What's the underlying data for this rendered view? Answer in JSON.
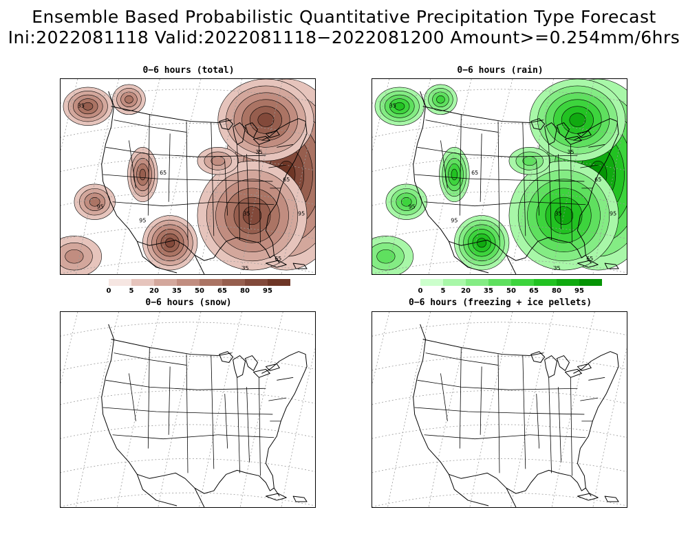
{
  "header": {
    "line1": "Ensemble Based Probabilistic Quantitative Precipitation Type Forecast",
    "line2": "Ini:2022081118 Valid:2022081118−2022081200 Amount>=0.254mm/6hrs"
  },
  "panels": {
    "total": {
      "title": "0−6 hours (total)"
    },
    "rain": {
      "title": "0−6 hours (rain)"
    },
    "snow": {
      "title": "0−6 hours (snow)"
    },
    "ice": {
      "title": "0−6 hours (freezing + ice pellets)"
    }
  },
  "colorbars": {
    "labels": [
      "0",
      "5",
      "20",
      "35",
      "50",
      "65",
      "80",
      "95"
    ],
    "brown": [
      "#f6e6e2",
      "#e6c4bc",
      "#d3a79c",
      "#c18d80",
      "#ab7464",
      "#965e4e",
      "#82493a",
      "#6e3626"
    ],
    "green": [
      "#ccffcc",
      "#a8f7a8",
      "#84ec84",
      "#5fe05f",
      "#3dd43d",
      "#22c222",
      "#10aa10",
      "#059405"
    ]
  },
  "contour_labels": [
    "35",
    "65",
    "95"
  ]
}
